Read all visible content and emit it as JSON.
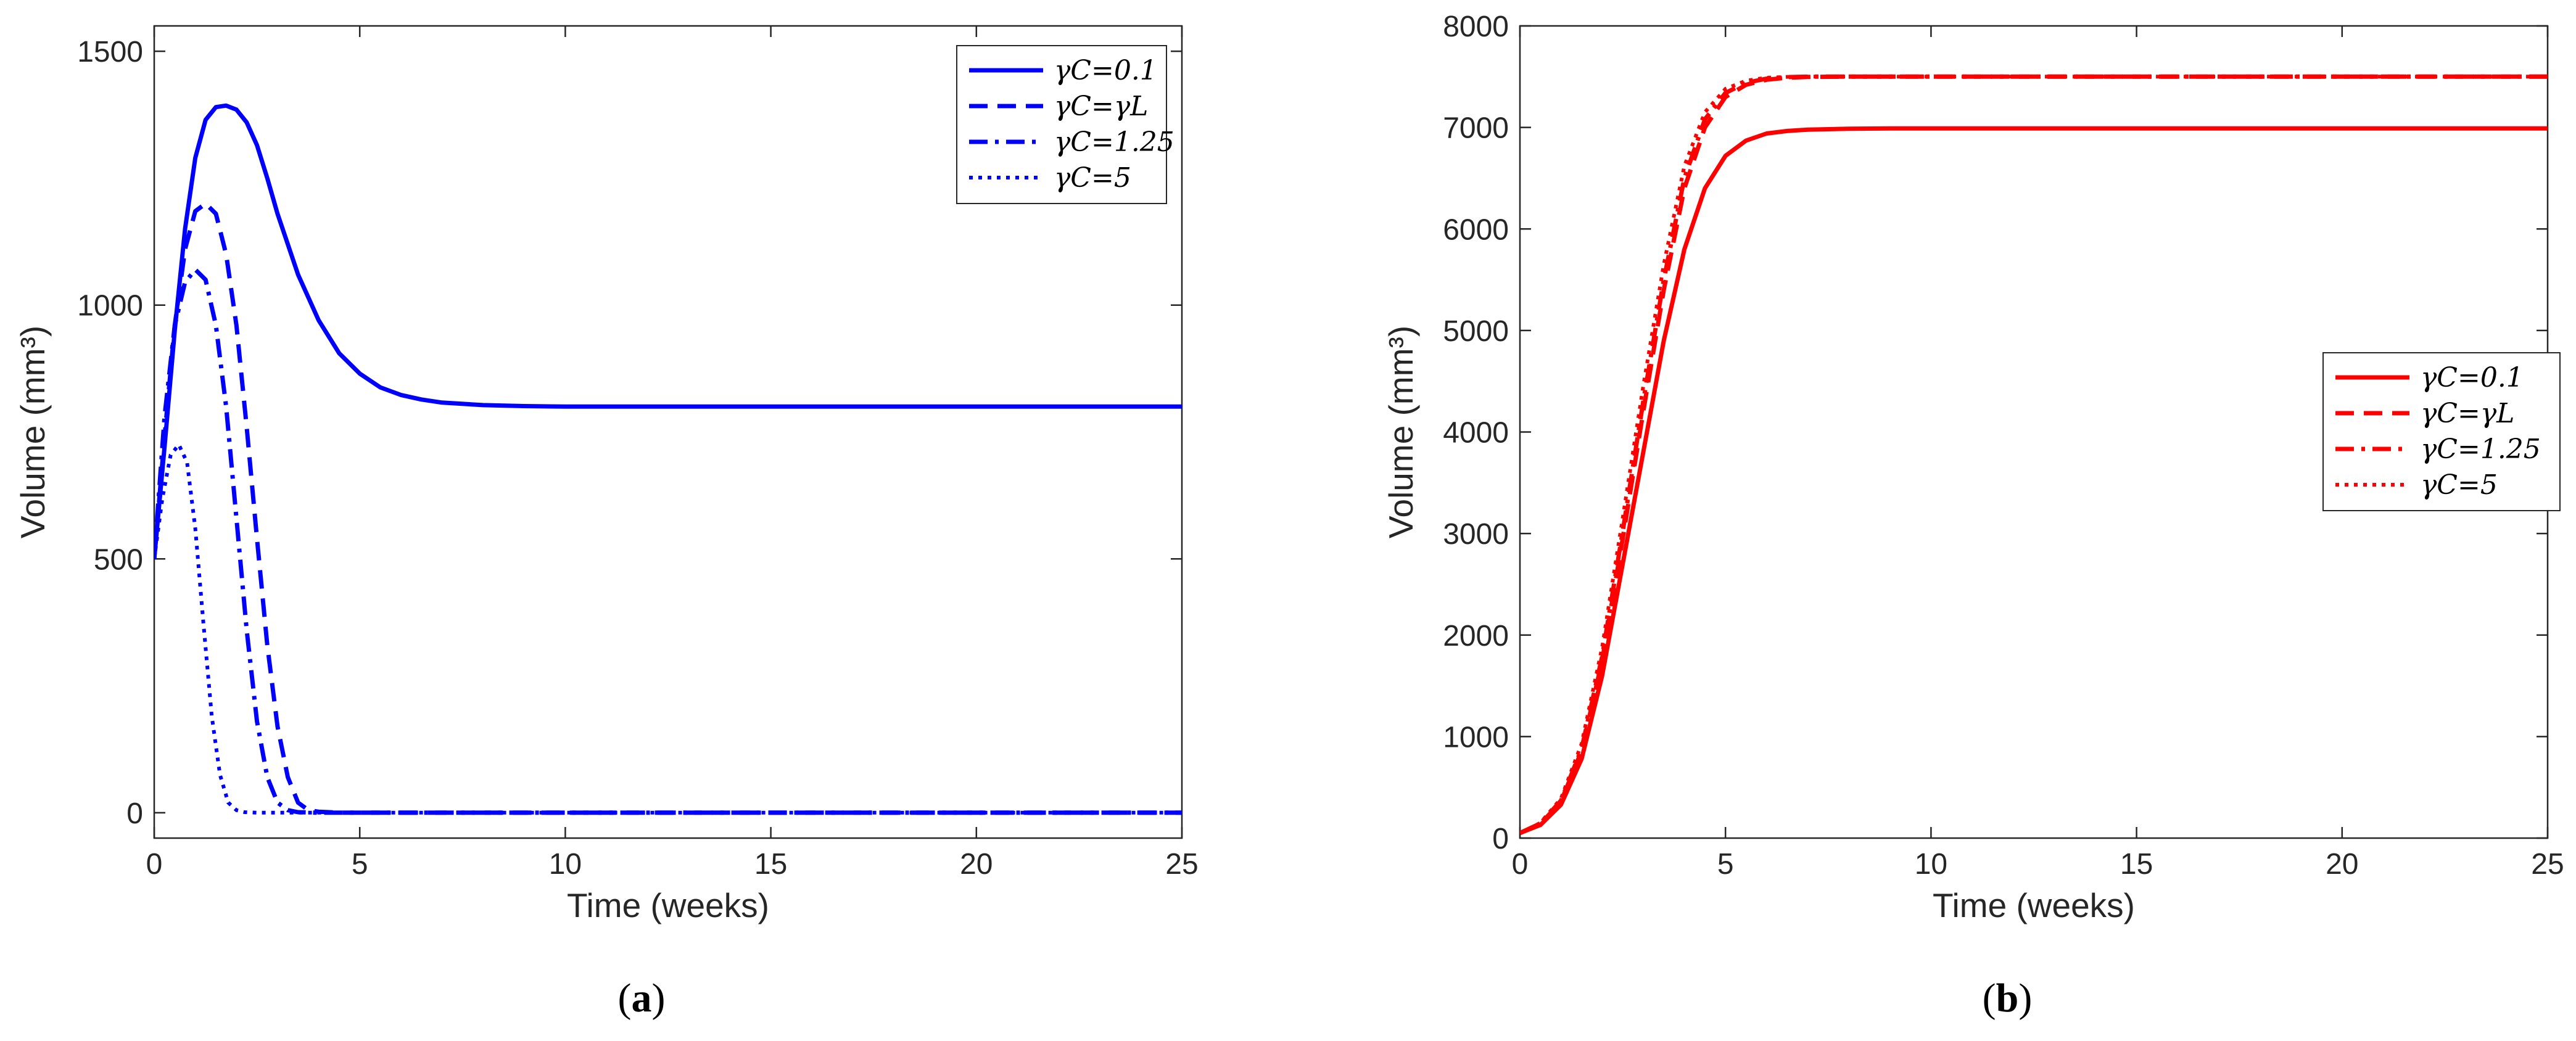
{
  "chart_data": [
    {
      "type": "line",
      "panel_label": "a",
      "xlabel": "Time (weeks)",
      "ylabel": "Volume (mm³)",
      "xlim": [
        0,
        25
      ],
      "ylim": [
        -50,
        1550
      ],
      "xticks": [
        0,
        5,
        10,
        15,
        20,
        25
      ],
      "yticks": [
        0,
        500,
        1000,
        1500
      ],
      "grid": false,
      "legend_position": "top-right",
      "color": "#0000ff",
      "series": [
        {
          "name": "γC=0.1",
          "style": "solid",
          "x": [
            0,
            0.25,
            0.5,
            0.75,
            1,
            1.25,
            1.5,
            1.75,
            2,
            2.25,
            2.5,
            2.75,
            3,
            3.5,
            4,
            4.5,
            5,
            5.5,
            6,
            6.5,
            7,
            8,
            9,
            10,
            12,
            15,
            20,
            25
          ],
          "y": [
            500,
            720,
            950,
            1150,
            1290,
            1365,
            1390,
            1393,
            1385,
            1360,
            1315,
            1250,
            1180,
            1060,
            970,
            905,
            865,
            838,
            823,
            814,
            808,
            803,
            801,
            800,
            800,
            800,
            800,
            800
          ]
        },
        {
          "name": "γC=γL",
          "style": "dashed",
          "x": [
            0,
            0.25,
            0.5,
            0.75,
            1,
            1.25,
            1.5,
            1.75,
            2,
            2.25,
            2.5,
            2.75,
            3,
            3.25,
            3.5,
            3.75,
            4,
            4.5,
            5,
            10,
            15,
            20,
            25
          ],
          "y": [
            500,
            740,
            960,
            1110,
            1185,
            1200,
            1180,
            1100,
            960,
            760,
            540,
            330,
            170,
            70,
            20,
            5,
            2,
            0,
            0,
            0,
            0,
            0,
            0
          ]
        },
        {
          "name": "γC=1.25",
          "style": "dash-dot",
          "x": [
            0,
            0.25,
            0.5,
            0.75,
            1,
            1.25,
            1.5,
            1.75,
            2,
            2.25,
            2.5,
            2.75,
            3,
            3.25,
            3.5,
            4,
            5,
            10,
            15,
            20,
            25
          ],
          "y": [
            500,
            780,
            960,
            1045,
            1070,
            1050,
            960,
            800,
            580,
            360,
            180,
            70,
            20,
            5,
            1,
            0,
            0,
            0,
            0,
            0,
            0
          ]
        },
        {
          "name": "γC=5",
          "style": "dotted",
          "x": [
            0,
            0.2,
            0.4,
            0.6,
            0.8,
            1,
            1.2,
            1.4,
            1.6,
            1.8,
            2,
            2.2,
            2.5,
            3,
            5,
            10,
            15,
            20,
            25
          ],
          "y": [
            500,
            620,
            705,
            725,
            690,
            560,
            370,
            190,
            75,
            20,
            5,
            1,
            0,
            0,
            0,
            0,
            0,
            0,
            0
          ]
        }
      ]
    },
    {
      "type": "line",
      "panel_label": "b",
      "xlabel": "Time (weeks)",
      "ylabel": "Volume (mm³)",
      "xlim": [
        0,
        25
      ],
      "ylim": [
        0,
        8000
      ],
      "xticks": [
        0,
        5,
        10,
        15,
        20,
        25
      ],
      "yticks": [
        0,
        1000,
        2000,
        3000,
        4000,
        5000,
        6000,
        7000,
        8000
      ],
      "grid": false,
      "legend_position": "center-right",
      "color": "#ff0000",
      "series": [
        {
          "name": "γC=0.1",
          "style": "solid",
          "x": [
            0,
            0.5,
            1,
            1.5,
            2,
            2.5,
            3,
            3.5,
            4,
            4.5,
            5,
            5.5,
            6,
            6.5,
            7,
            8,
            9,
            10,
            15,
            20,
            25
          ],
          "y": [
            50,
            130,
            330,
            780,
            1600,
            2700,
            3800,
            4900,
            5800,
            6400,
            6720,
            6870,
            6940,
            6965,
            6978,
            6987,
            6990,
            6990,
            6990,
            6990,
            6990
          ]
        },
        {
          "name": "γC=γL",
          "style": "dashed",
          "x": [
            0,
            0.5,
            1,
            1.5,
            2,
            2.5,
            3,
            3.5,
            4,
            4.5,
            5,
            5.5,
            6,
            6.5,
            7,
            8,
            10,
            15,
            20,
            25
          ],
          "y": [
            50,
            140,
            360,
            860,
            1750,
            2950,
            4200,
            5400,
            6400,
            7000,
            7300,
            7420,
            7470,
            7490,
            7497,
            7500,
            7500,
            7500,
            7500,
            7500
          ]
        },
        {
          "name": "γC=1.25",
          "style": "dash-dot",
          "x": [
            0,
            0.5,
            1,
            1.5,
            2,
            2.5,
            3,
            3.5,
            4,
            4.5,
            5,
            5.5,
            6,
            6.5,
            7,
            8,
            10,
            15,
            20,
            25
          ],
          "y": [
            50,
            145,
            370,
            880,
            1790,
            3020,
            4300,
            5500,
            6500,
            7080,
            7340,
            7440,
            7480,
            7495,
            7500,
            7500,
            7500,
            7500,
            7500,
            7500
          ]
        },
        {
          "name": "γC=5",
          "style": "dotted",
          "x": [
            0,
            0.5,
            1,
            1.5,
            2,
            2.5,
            3,
            3.5,
            4,
            4.5,
            5,
            5.5,
            6,
            6.5,
            7,
            8,
            10,
            15,
            20,
            25
          ],
          "y": [
            50,
            150,
            390,
            930,
            1880,
            3150,
            4450,
            5650,
            6620,
            7150,
            7380,
            7460,
            7490,
            7498,
            7500,
            7500,
            7500,
            7500,
            7500,
            7500
          ]
        }
      ]
    }
  ]
}
